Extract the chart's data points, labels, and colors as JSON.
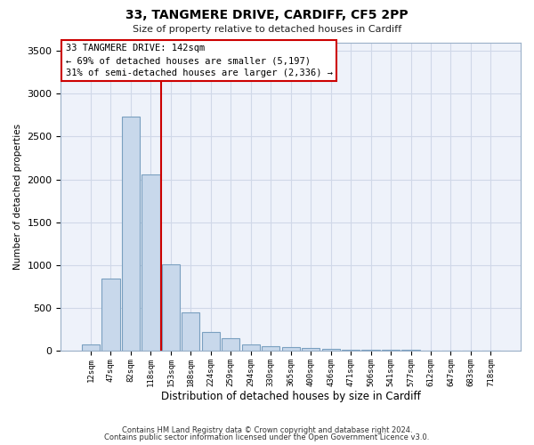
{
  "title1": "33, TANGMERE DRIVE, CARDIFF, CF5 2PP",
  "title2": "Size of property relative to detached houses in Cardiff",
  "xlabel": "Distribution of detached houses by size in Cardiff",
  "ylabel": "Number of detached properties",
  "categories": [
    "12sqm",
    "47sqm",
    "82sqm",
    "118sqm",
    "153sqm",
    "188sqm",
    "224sqm",
    "259sqm",
    "294sqm",
    "330sqm",
    "365sqm",
    "400sqm",
    "436sqm",
    "471sqm",
    "506sqm",
    "541sqm",
    "577sqm",
    "612sqm",
    "647sqm",
    "683sqm",
    "718sqm"
  ],
  "values": [
    70,
    840,
    2730,
    2060,
    1010,
    450,
    220,
    145,
    75,
    50,
    40,
    30,
    20,
    15,
    10,
    8,
    6,
    5,
    4,
    3,
    2
  ],
  "bar_color": "#c8d8eb",
  "bar_edge_color": "#7aa0c0",
  "vline_x": 3.5,
  "vline_color": "#cc0000",
  "annotation_text": "33 TANGMERE DRIVE: 142sqm\n← 69% of detached houses are smaller (5,197)\n31% of semi-detached houses are larger (2,336) →",
  "annotation_box_facecolor": "#ffffff",
  "annotation_box_edgecolor": "#cc0000",
  "ylim": [
    0,
    3600
  ],
  "yticks": [
    0,
    500,
    1000,
    1500,
    2000,
    2500,
    3000,
    3500
  ],
  "footer_line1": "Contains HM Land Registry data © Crown copyright and database right 2024.",
  "footer_line2": "Contains public sector information licensed under the Open Government Licence v3.0.",
  "grid_color": "#d0d8e8",
  "bg_color": "#ffffff",
  "axes_bg_color": "#eef2fa"
}
